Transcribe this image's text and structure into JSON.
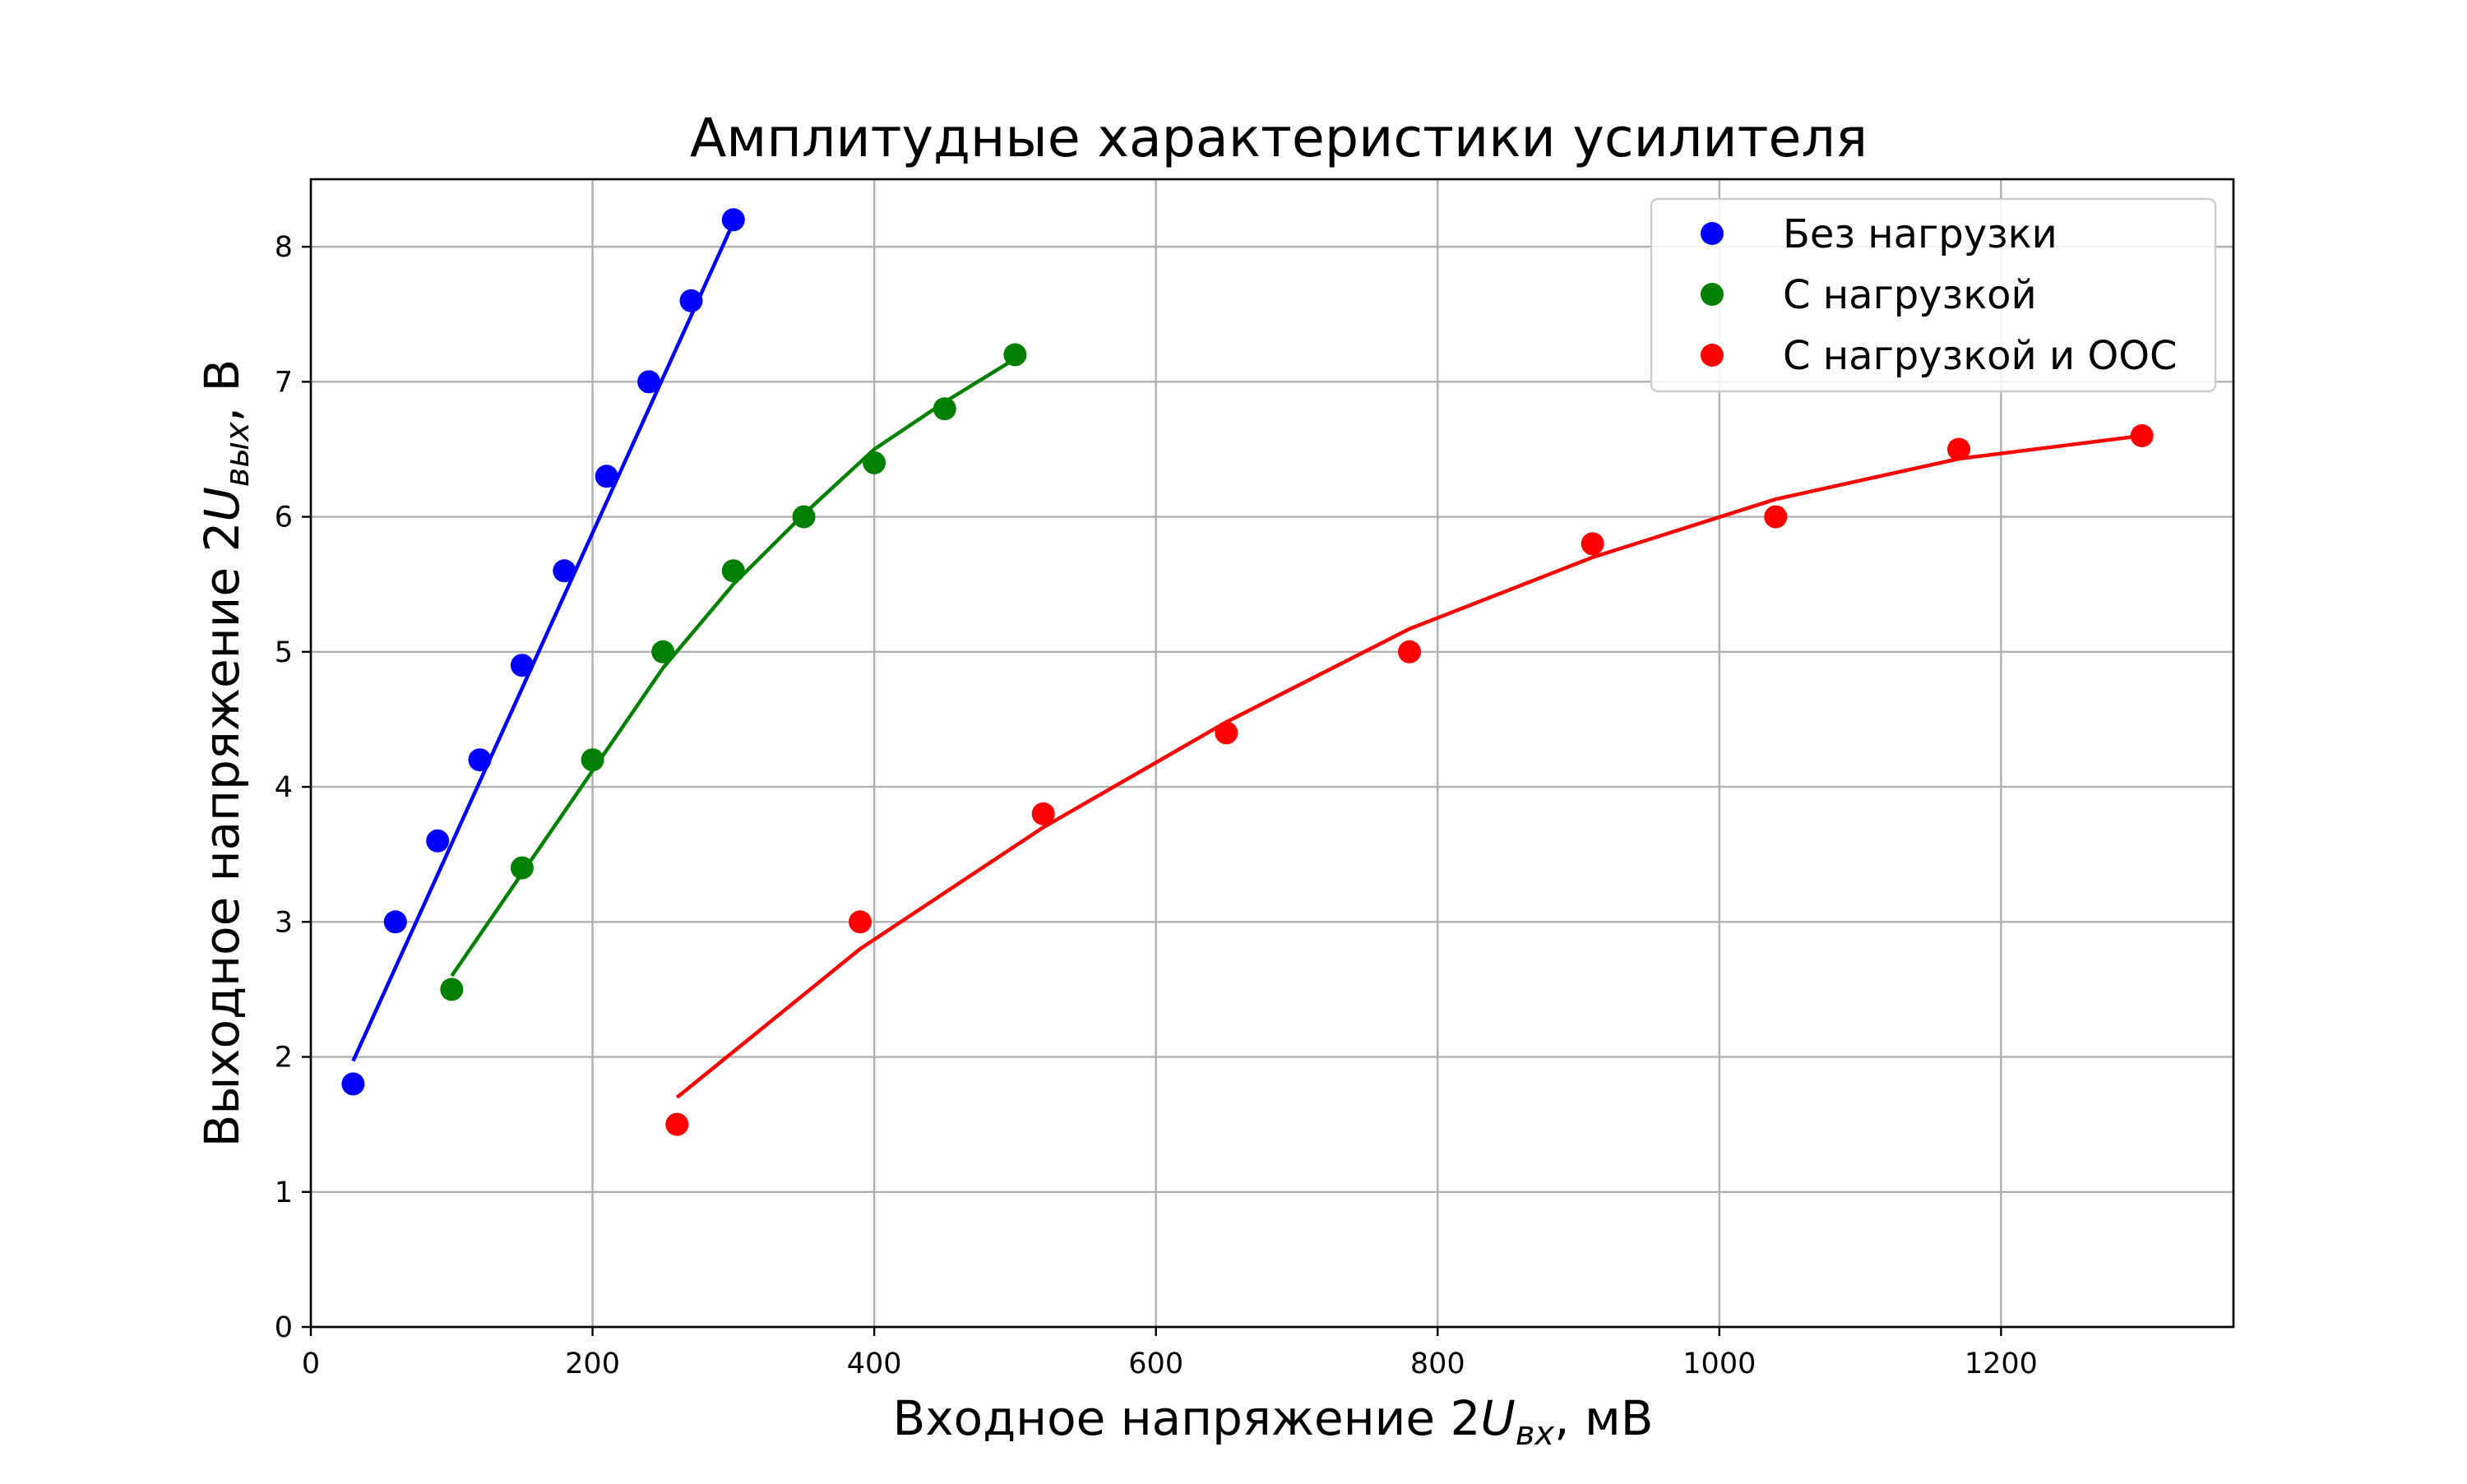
{
  "chart_data": {
    "type": "line",
    "title": "Амплитудные характеристики усилителя",
    "xlabel": {
      "prefix": "Входное напряжение 2",
      "symbol": "U",
      "subscript": "вх",
      "suffix": ", мВ"
    },
    "ylabel": {
      "prefix": "Выходное напряжение 2",
      "symbol": "U",
      "subscript": "вых",
      "suffix": ", В"
    },
    "xlim": [
      0,
      1365
    ],
    "ylim": [
      0,
      8.5
    ],
    "xticks": [
      0,
      200,
      400,
      600,
      800,
      1000,
      1200
    ],
    "yticks": [
      0,
      1,
      2,
      3,
      4,
      5,
      6,
      7,
      8
    ],
    "grid": true,
    "legend_position": "top-right",
    "series": [
      {
        "name": "Без нагрузки",
        "color": "#0000ff",
        "points": [
          [
            30,
            1.8
          ],
          [
            60,
            3.0
          ],
          [
            90,
            3.6
          ],
          [
            120,
            4.2
          ],
          [
            150,
            4.9
          ],
          [
            180,
            5.6
          ],
          [
            210,
            6.3
          ],
          [
            240,
            7.0
          ],
          [
            270,
            7.6
          ],
          [
            300,
            8.2
          ]
        ],
        "fit": [
          [
            30,
            1.97
          ],
          [
            60,
            2.66
          ],
          [
            90,
            3.35
          ],
          [
            120,
            4.04
          ],
          [
            150,
            4.73
          ],
          [
            180,
            5.42
          ],
          [
            210,
            6.11
          ],
          [
            240,
            6.8
          ],
          [
            270,
            7.49
          ],
          [
            300,
            8.18
          ]
        ]
      },
      {
        "name": "С нагрузкой",
        "color": "#008000",
        "points": [
          [
            100,
            2.5
          ],
          [
            150,
            3.4
          ],
          [
            200,
            4.2
          ],
          [
            250,
            5.0
          ],
          [
            300,
            5.6
          ],
          [
            350,
            6.0
          ],
          [
            400,
            6.4
          ],
          [
            450,
            6.8
          ],
          [
            500,
            7.2
          ]
        ],
        "fit": [
          [
            100,
            2.6
          ],
          [
            150,
            3.36
          ],
          [
            200,
            4.12
          ],
          [
            250,
            4.88
          ],
          [
            300,
            5.5
          ],
          [
            350,
            6.02
          ],
          [
            400,
            6.5
          ],
          [
            450,
            6.85
          ],
          [
            500,
            7.17
          ]
        ]
      },
      {
        "name": "С нагрузкой и ООС",
        "color": "#ff0000",
        "points": [
          [
            260,
            1.5
          ],
          [
            390,
            3.0
          ],
          [
            520,
            3.8
          ],
          [
            650,
            4.4
          ],
          [
            780,
            5.0
          ],
          [
            910,
            5.8
          ],
          [
            1040,
            6.0
          ],
          [
            1170,
            6.5
          ],
          [
            1300,
            6.6
          ]
        ],
        "fit": [
          [
            260,
            1.7
          ],
          [
            390,
            2.8
          ],
          [
            520,
            3.7
          ],
          [
            650,
            4.48
          ],
          [
            780,
            5.17
          ],
          [
            910,
            5.7
          ],
          [
            1040,
            6.13
          ],
          [
            1170,
            6.43
          ],
          [
            1300,
            6.6
          ]
        ]
      }
    ]
  }
}
